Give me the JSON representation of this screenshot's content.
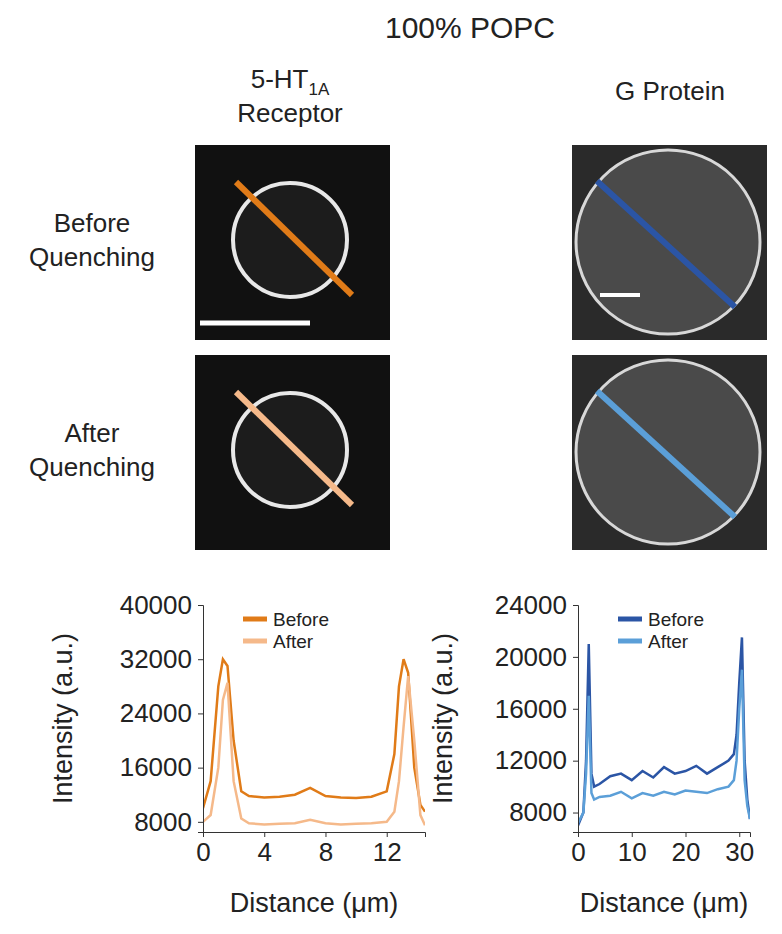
{
  "figure": {
    "title": "100% POPC",
    "columns": [
      {
        "text": "5-HT",
        "subscript": "1A",
        "line2": "Receptor"
      },
      {
        "text": "G Protein"
      }
    ],
    "rows": [
      [
        "Before",
        "Quenching"
      ],
      [
        "After",
        "Quenching"
      ]
    ]
  },
  "chart_data": [
    {
      "type": "line",
      "xlabel": "Distance (μm)",
      "ylabel": "Intensity (a.u.)",
      "x": [
        0,
        0.5,
        1,
        1.3,
        1.6,
        2,
        2.5,
        3,
        4,
        5,
        6,
        7,
        8,
        9,
        10,
        11,
        12,
        12.5,
        12.8,
        13.1,
        13.4,
        13.8,
        14.2,
        14.5
      ],
      "series": [
        {
          "name": "Before",
          "color": "#e07b18",
          "values": [
            10000,
            14000,
            28000,
            32000,
            31000,
            20000,
            12500,
            11800,
            11600,
            11700,
            12000,
            13000,
            11800,
            11600,
            11500,
            11700,
            12500,
            18000,
            28000,
            32000,
            30000,
            16000,
            10500,
            9500
          ]
        },
        {
          "name": "After",
          "color": "#f5b98a",
          "values": [
            8000,
            9000,
            16000,
            26000,
            28500,
            14000,
            8500,
            7800,
            7600,
            7700,
            7800,
            8300,
            7800,
            7600,
            7700,
            7800,
            8000,
            9500,
            14000,
            22000,
            29500,
            20000,
            9000,
            7500
          ]
        }
      ],
      "xlim": [
        0,
        14.5
      ],
      "ylim": [
        6500,
        40000
      ],
      "xticks": [
        0,
        4,
        8,
        12
      ],
      "yticks": [
        8000,
        16000,
        24000,
        32000,
        40000
      ],
      "legend": "upper left"
    },
    {
      "type": "line",
      "xlabel": "Distance (μm)",
      "ylabel": "Intensity (a.u.)",
      "x": [
        0,
        1,
        1.5,
        2,
        2.5,
        3,
        4,
        6,
        8,
        10,
        12,
        14,
        16,
        18,
        20,
        22,
        24,
        26,
        28,
        29,
        29.5,
        30,
        30.5,
        31,
        31.5,
        32
      ],
      "series": [
        {
          "name": "Before",
          "color": "#2b55a5",
          "values": [
            7000,
            8000,
            12000,
            21000,
            11000,
            10000,
            10200,
            10800,
            11000,
            10500,
            11200,
            10700,
            11500,
            11000,
            11200,
            11600,
            11000,
            11500,
            12000,
            12500,
            14000,
            18000,
            21500,
            12000,
            9000,
            7500
          ]
        },
        {
          "name": "After",
          "color": "#5b9fd8",
          "values": [
            7200,
            8000,
            11000,
            17000,
            9500,
            9000,
            9200,
            9300,
            9600,
            9100,
            9500,
            9300,
            9600,
            9400,
            9700,
            9600,
            9500,
            9800,
            10000,
            10500,
            12000,
            16000,
            19000,
            10500,
            8500,
            7500
          ]
        }
      ],
      "xlim": [
        0,
        32
      ],
      "ylim": [
        6500,
        24000
      ],
      "xticks": [
        0,
        10,
        20,
        30
      ],
      "yticks": [
        8000,
        12000,
        16000,
        20000,
        24000
      ],
      "legend": "upper left"
    }
  ]
}
